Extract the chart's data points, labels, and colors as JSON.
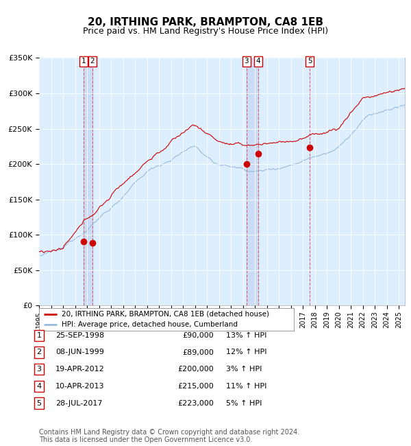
{
  "title": "20, IRTHING PARK, BRAMPTON, CA8 1EB",
  "subtitle": "Price paid vs. HM Land Registry's House Price Index (HPI)",
  "title_fontsize": 11,
  "subtitle_fontsize": 9,
  "ylabel_ticks": [
    "£0",
    "£50K",
    "£100K",
    "£150K",
    "£200K",
    "£250K",
    "£300K",
    "£350K"
  ],
  "ytick_values": [
    0,
    50000,
    100000,
    150000,
    200000,
    250000,
    300000,
    350000
  ],
  "ylim": [
    0,
    350000
  ],
  "xlim_start": 1995.0,
  "xlim_end": 2025.5,
  "sale_color": "#cc0000",
  "hpi_color": "#99bbdd",
  "plot_bg_color": "#ddeeff",
  "grid_color": "#ffffff",
  "legend_label_sale": "20, IRTHING PARK, BRAMPTON, CA8 1EB (detached house)",
  "legend_label_hpi": "HPI: Average price, detached house, Cumberland",
  "sales": [
    {
      "num": 1,
      "date_num": 1998.73,
      "price": 90000,
      "label": "25-SEP-1998",
      "price_str": "£90,000",
      "hpi_rel": "13% ↑ HPI"
    },
    {
      "num": 2,
      "date_num": 1999.44,
      "price": 89000,
      "label": "08-JUN-1999",
      "price_str": "£89,000",
      "hpi_rel": "12% ↑ HPI"
    },
    {
      "num": 3,
      "date_num": 2012.3,
      "price": 200000,
      "label": "19-APR-2012",
      "price_str": "£200,000",
      "hpi_rel": "3% ↑ HPI"
    },
    {
      "num": 4,
      "date_num": 2013.27,
      "price": 215000,
      "label": "10-APR-2013",
      "price_str": "£215,000",
      "hpi_rel": "11% ↑ HPI"
    },
    {
      "num": 5,
      "date_num": 2017.57,
      "price": 223000,
      "label": "28-JUL-2017",
      "price_str": "£223,000",
      "hpi_rel": "5% ↑ HPI"
    }
  ],
  "footer_line1": "Contains HM Land Registry data © Crown copyright and database right 2024.",
  "footer_line2": "This data is licensed under the Open Government Licence v3.0.",
  "footnote_fontsize": 7,
  "sale_vline_color": "#dd4444",
  "sale_vline_alpha": 0.8,
  "highlight_band_color": "#bbccee",
  "highlight_band_alpha": 0.5
}
